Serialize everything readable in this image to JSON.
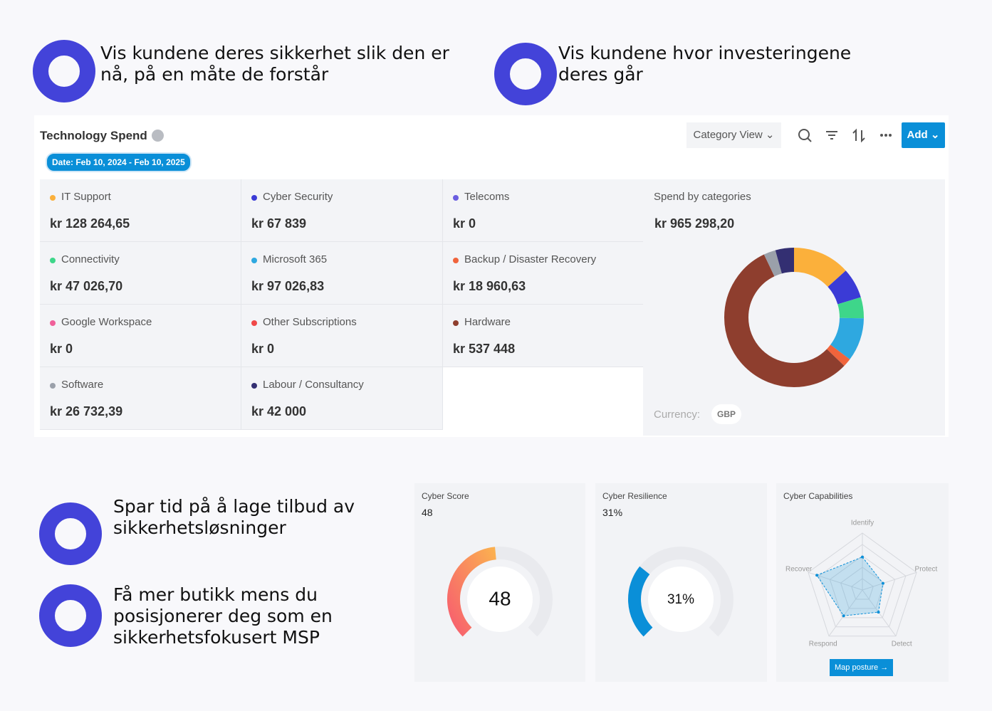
{
  "features": [
    {
      "lines": [
        "Vis kundene deres sikkerhet slik den er",
        "nå, på en måte de forstår"
      ]
    },
    {
      "lines": [
        "Vis kundene hvor investeringene",
        "deres går"
      ]
    },
    {
      "lines": [
        "Spar tid på å lage tilbud av",
        "sikkerhetsløsninger"
      ]
    },
    {
      "lines": [
        "Få mer butikk mens du",
        "posisjonerer deg som en",
        "sikkerhetsfokusert MSP"
      ]
    }
  ],
  "spend": {
    "title": "Technology Spend",
    "date": "Date: Feb 10, 2024 - Feb 10, 2025",
    "view": "Category View",
    "add": "Add",
    "categories": [
      {
        "name": "IT Support",
        "color": "#fbb03b",
        "value": 128264.65,
        "label": "kr 128 264,65"
      },
      {
        "name": "Cyber Security",
        "color": "#3b3bd6",
        "value": 67839,
        "label": "kr 67 839"
      },
      {
        "name": "Telecoms",
        "color": "#6a5de0",
        "value": 0,
        "label": "kr 0"
      },
      {
        "name": "Connectivity",
        "color": "#3ed68a",
        "value": 47026.7,
        "label": "kr 47 026,70"
      },
      {
        "name": "Microsoft 365",
        "color": "#2ea8e0",
        "value": 97026.83,
        "label": "kr 97 026,83"
      },
      {
        "name": "Backup / Disaster Recovery",
        "color": "#f0643c",
        "value": 18960.63,
        "label": "kr 18 960,63"
      },
      {
        "name": "Google Workspace",
        "color": "#f0609a",
        "value": 0,
        "label": "kr 0"
      },
      {
        "name": "Other Subscriptions",
        "color": "#f04848",
        "value": 0,
        "label": "kr 0"
      },
      {
        "name": "Hardware",
        "color": "#8e3e2e",
        "value": 537448,
        "label": "kr 537 448"
      },
      {
        "name": "Software",
        "color": "#9aa0aa",
        "value": 26732.39,
        "label": "kr 26 732,39"
      },
      {
        "name": "Labour / Consultancy",
        "color": "#332f72",
        "value": 42000,
        "label": "kr 42 000"
      }
    ],
    "total_title": "Spend by categories",
    "total": "kr 965 298,20",
    "currency_label": "Currency:",
    "currency": "GBP"
  },
  "score": {
    "title": "Cyber Score",
    "value": 48,
    "range": [
      0,
      100
    ]
  },
  "resilience": {
    "title": "Cyber Resilience",
    "value": 31,
    "value_label": "31%",
    "range": [
      0,
      100
    ],
    "color": "#0a8fd8"
  },
  "capabilities": {
    "title": "Cyber Capabilities",
    "axes": [
      "Identify",
      "Protect",
      "Detect",
      "Respond",
      "Recover"
    ],
    "values": [
      2.9,
      1.9,
      2.4,
      2.8,
      4.2
    ],
    "rlim": [
      0,
      5
    ],
    "rticks": [
      1,
      2,
      3,
      4,
      5
    ],
    "button": "Map posture →"
  }
}
